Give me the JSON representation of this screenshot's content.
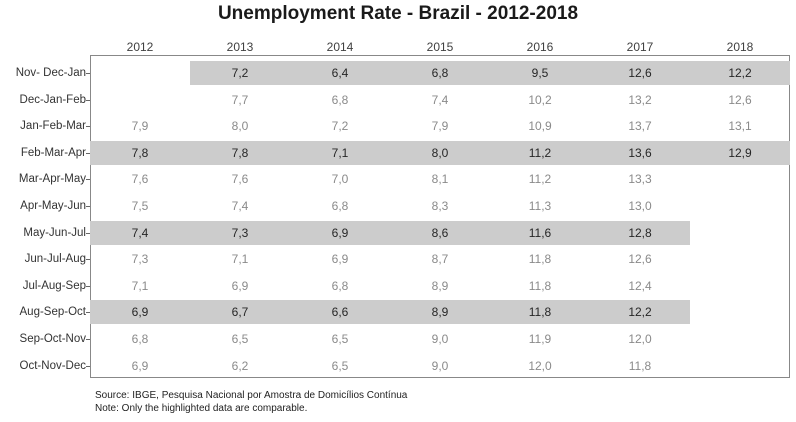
{
  "title": "Unemployment Rate - Brazil - 2012-2018",
  "chart_data": {
    "type": "table",
    "title": "Unemployment Rate - Brazil - 2012-2018",
    "columns": [
      "2012",
      "2013",
      "2014",
      "2015",
      "2016",
      "2017",
      "2018"
    ],
    "rows": [
      "Nov- Dec-Jan",
      "Dec-Jan-Feb",
      "Jan-Feb-Mar",
      "Feb-Mar-Apr",
      "Mar-Apr-May",
      "Apr-May-Jun",
      "May-Jun-Jul",
      "Jun-Jul-Aug",
      "Jul-Aug-Sep",
      "Aug-Sep-Oct",
      "Sep-Oct-Nov",
      "Oct-Nov-Dec"
    ],
    "values": [
      [
        "",
        "7,2",
        "6,4",
        "6,8",
        "9,5",
        "12,6",
        "12,2"
      ],
      [
        "",
        "7,7",
        "6,8",
        "7,4",
        "10,2",
        "13,2",
        "12,6"
      ],
      [
        "7,9",
        "8,0",
        "7,2",
        "7,9",
        "10,9",
        "13,7",
        "13,1"
      ],
      [
        "7,8",
        "7,8",
        "7,1",
        "8,0",
        "11,2",
        "13,6",
        "12,9"
      ],
      [
        "7,6",
        "7,6",
        "7,0",
        "8,1",
        "11,2",
        "13,3",
        ""
      ],
      [
        "7,5",
        "7,4",
        "6,8",
        "8,3",
        "11,3",
        "13,0",
        ""
      ],
      [
        "7,4",
        "7,3",
        "6,9",
        "8,6",
        "11,6",
        "12,8",
        ""
      ],
      [
        "7,3",
        "7,1",
        "6,9",
        "8,7",
        "11,8",
        "12,6",
        ""
      ],
      [
        "7,1",
        "6,9",
        "6,8",
        "8,9",
        "11,8",
        "12,4",
        ""
      ],
      [
        "6,9",
        "6,7",
        "6,6",
        "8,9",
        "11,8",
        "12,2",
        ""
      ],
      [
        "6,8",
        "6,5",
        "6,5",
        "9,0",
        "11,9",
        "12,0",
        ""
      ],
      [
        "6,9",
        "6,2",
        "6,5",
        "9,0",
        "12,0",
        "11,8",
        ""
      ]
    ],
    "highlighted_rows": [
      0,
      3,
      6,
      9
    ],
    "highlight_color": "#cccccc"
  },
  "source_lines": [
    "Source: IBGE, Pesquisa Nacional por Amostra de Domicílios Contínua",
    "Note: Only the highlighted data are comparable."
  ]
}
